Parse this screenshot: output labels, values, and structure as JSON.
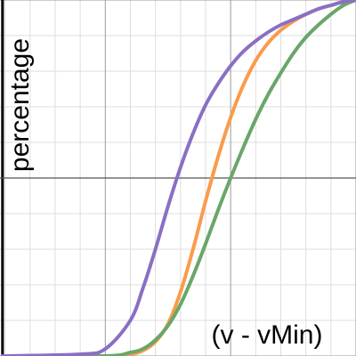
{
  "chart_data": {
    "type": "line",
    "xlabel": "(v - vMin)",
    "ylabel": "percentage",
    "title": "",
    "xlim": [
      -0.84,
      2.0
    ],
    "ylim": [
      0.0,
      2.0
    ],
    "grid": true,
    "x_axis_at_y": 1.0,
    "y_axis_at_x": -0.82,
    "series": [
      {
        "color": "#fa9b4b",
        "x": [
          -0.82,
          0.0,
          0.2,
          0.3,
          0.4,
          0.5,
          0.6,
          0.7,
          0.8,
          0.9,
          1.0,
          1.1,
          1.2,
          1.3,
          1.4,
          1.5,
          1.6,
          1.7,
          1.8,
          1.9,
          2.0
        ],
        "y": [
          0.0,
          0.0,
          0.01,
          0.03,
          0.08,
          0.18,
          0.36,
          0.6,
          0.87,
          1.12,
          1.34,
          1.52,
          1.66,
          1.76,
          1.83,
          1.88,
          1.92,
          1.95,
          1.97,
          1.99,
          2.0
        ]
      },
      {
        "color": "#6aa66a",
        "x": [
          -0.82,
          0.0,
          0.2,
          0.3,
          0.4,
          0.5,
          0.6,
          0.7,
          0.8,
          0.9,
          1.0,
          1.1,
          1.2,
          1.3,
          1.4,
          1.5,
          1.6,
          1.7,
          1.8,
          1.9,
          2.0
        ],
        "y": [
          0.0,
          0.0,
          0.02,
          0.04,
          0.09,
          0.17,
          0.29,
          0.45,
          0.63,
          0.82,
          1.0,
          1.17,
          1.33,
          1.47,
          1.59,
          1.7,
          1.79,
          1.86,
          1.92,
          1.97,
          2.0
        ]
      },
      {
        "color": "#8a6fc4",
        "x": [
          -0.82,
          -0.2,
          0.0,
          0.2,
          0.3,
          0.4,
          0.5,
          0.6,
          0.7,
          0.8,
          0.9,
          1.0,
          1.1,
          1.2,
          1.3,
          1.4,
          1.5,
          1.6,
          1.7,
          1.8,
          1.9,
          2.0
        ],
        "y": [
          0.0,
          0.01,
          0.04,
          0.2,
          0.38,
          0.6,
          0.84,
          1.06,
          1.25,
          1.41,
          1.53,
          1.63,
          1.71,
          1.77,
          1.82,
          1.86,
          1.89,
          1.92,
          1.95,
          1.97,
          1.99,
          2.0
        ]
      }
    ]
  }
}
